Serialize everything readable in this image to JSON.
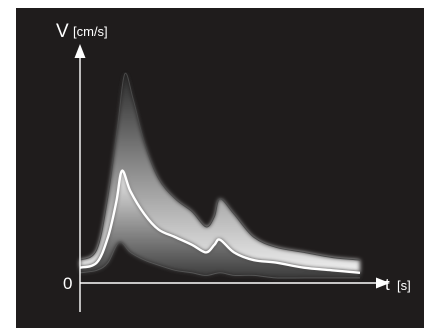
{
  "chart_data": {
    "type": "area",
    "title": "",
    "ylabel_symbol": "V",
    "ylabel_unit": "[cm/s]",
    "xlabel_symbol": "t",
    "xlabel_unit": "[s]",
    "y_origin_label": "0",
    "grid": false,
    "legend": "none",
    "series": [
      {
        "name": "",
        "role": "envelope-upper",
        "x": [
          0.0,
          0.06,
          0.1,
          0.135,
          0.16,
          0.19,
          0.23,
          0.28,
          0.34,
          0.4,
          0.45,
          0.48,
          0.5,
          0.55,
          0.62,
          0.7,
          0.8,
          0.9,
          1.0
        ],
        "y": [
          0.09,
          0.13,
          0.34,
          0.62,
          0.82,
          0.72,
          0.55,
          0.41,
          0.33,
          0.28,
          0.22,
          0.26,
          0.33,
          0.27,
          0.18,
          0.14,
          0.12,
          0.1,
          0.09
        ]
      },
      {
        "name": "",
        "role": "mean",
        "x": [
          0.0,
          0.06,
          0.1,
          0.13,
          0.15,
          0.18,
          0.23,
          0.28,
          0.34,
          0.4,
          0.45,
          0.48,
          0.5,
          0.55,
          0.62,
          0.7,
          0.8,
          0.9,
          1.0
        ],
        "y": [
          0.06,
          0.08,
          0.18,
          0.32,
          0.44,
          0.36,
          0.27,
          0.21,
          0.18,
          0.15,
          0.12,
          0.15,
          0.17,
          0.12,
          0.09,
          0.08,
          0.06,
          0.05,
          0.04
        ]
      },
      {
        "name": "",
        "role": "envelope-lower",
        "x": [
          0.0,
          0.06,
          0.1,
          0.14,
          0.18,
          0.23,
          0.28,
          0.34,
          0.4,
          0.45,
          0.5,
          0.55,
          0.62,
          0.7,
          0.8,
          0.9,
          1.0
        ],
        "y": [
          0.04,
          0.05,
          0.08,
          0.16,
          0.12,
          0.09,
          0.07,
          0.05,
          0.04,
          0.03,
          0.04,
          0.03,
          0.03,
          0.02,
          0.02,
          0.02,
          0.02
        ]
      }
    ],
    "colors": {
      "background": "#1f1c1c",
      "axis": "#ffffff",
      "mean_line": "#ffffff",
      "band_outer": "#5a5a5a",
      "band_inner": "#e8e8e8"
    }
  }
}
